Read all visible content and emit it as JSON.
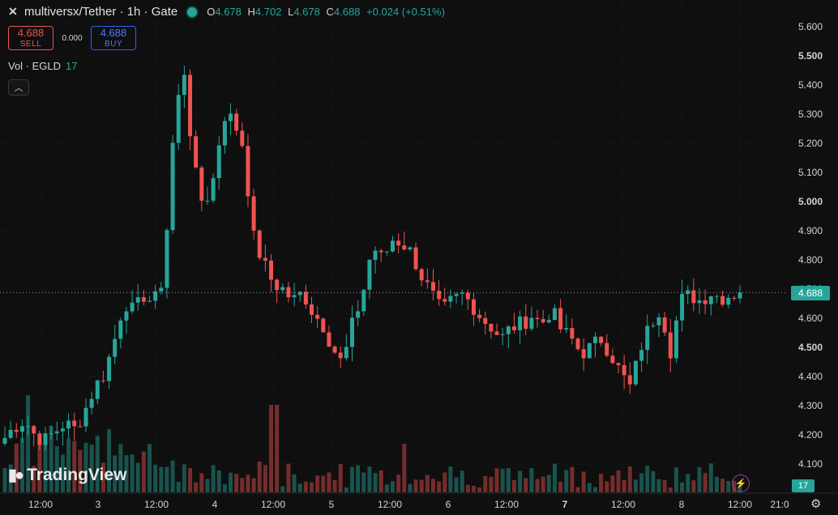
{
  "header": {
    "symbol_icon": "multiversx-logo-icon",
    "title": "multiversx/Tether · 1h · Gate",
    "ohlc": {
      "o_label": "O",
      "o": "4.678",
      "h_label": "H",
      "h": "4.702",
      "l_label": "L",
      "l": "4.678",
      "c_label": "C",
      "c": "4.688",
      "change": "+0.024 (+0.51%)"
    }
  },
  "trade": {
    "sell_price": "4.688",
    "sell_label": "SELL",
    "spread": "0.000",
    "buy_price": "4.688",
    "buy_label": "BUY"
  },
  "volume_legend": {
    "label": "Vol · EGLD",
    "value": "17"
  },
  "brand": "TradingView",
  "last_price_label": "4.688",
  "volume_badge": "17",
  "colors": {
    "up": "#26a69a",
    "down": "#ef5350",
    "background": "#0f0f0f",
    "grid": "#1f1f1f"
  },
  "chart_data": {
    "type": "candlestick",
    "ylim": [
      4.02,
      5.66
    ],
    "yticks": [
      "5.600",
      "5.500",
      "5.400",
      "5.300",
      "5.200",
      "5.100",
      "5.000",
      "4.900",
      "4.800",
      "4.700",
      "4.600",
      "4.500",
      "4.400",
      "4.300",
      "4.200",
      "4.100"
    ],
    "ytick_values": [
      5.6,
      5.5,
      5.4,
      5.3,
      5.2,
      5.1,
      5.0,
      4.9,
      4.8,
      4.7,
      4.6,
      4.5,
      4.4,
      4.3,
      4.2,
      4.1
    ],
    "bold_ticks": [
      "5.500",
      "5.000",
      "4.500"
    ],
    "xticks": [
      "12:00",
      "3",
      "12:00",
      "4",
      "12:00",
      "5",
      "12:00",
      "6",
      "12:00",
      "7",
      "12:00",
      "8",
      "12:00",
      "21:0"
    ],
    "bold_xticks": [
      "7"
    ],
    "last_price": 4.688,
    "anchor_closes": [
      4.19,
      4.23,
      4.25,
      4.2,
      4.18,
      4.21,
      4.24,
      4.22,
      4.28,
      4.36,
      4.41,
      4.52,
      4.66,
      4.62,
      4.68,
      4.65,
      4.75,
      5.25,
      5.47,
      5.12,
      4.98,
      5.08,
      5.3,
      5.28,
      5.19,
      4.88,
      4.79,
      4.72,
      4.7,
      4.66,
      4.69,
      4.62,
      4.58,
      4.5,
      4.44,
      4.58,
      4.68,
      4.85,
      4.8,
      4.87,
      4.86,
      4.82,
      4.74,
      4.68,
      4.62,
      4.66,
      4.68,
      4.65,
      4.6,
      4.57,
      4.53,
      4.57,
      4.58,
      4.61,
      4.58,
      4.63,
      4.56,
      4.53,
      4.48,
      4.5,
      4.53,
      4.48,
      4.41,
      4.36,
      4.5,
      4.58,
      4.64,
      4.49,
      4.66,
      4.68,
      4.66,
      4.69,
      4.67,
      4.68,
      4.69
    ],
    "volume_max": 120,
    "volume_peaks": [
      [
        24,
        58
      ],
      [
        36,
        120
      ],
      [
        48,
        58
      ],
      [
        64,
        82
      ],
      [
        134,
        78
      ],
      [
        142,
        38
      ],
      [
        322,
        38
      ],
      [
        338,
        108
      ],
      [
        458,
        32
      ],
      [
        498,
        60
      ],
      [
        598,
        20
      ],
      [
        776,
        32
      ],
      [
        900,
        14
      ]
    ]
  }
}
